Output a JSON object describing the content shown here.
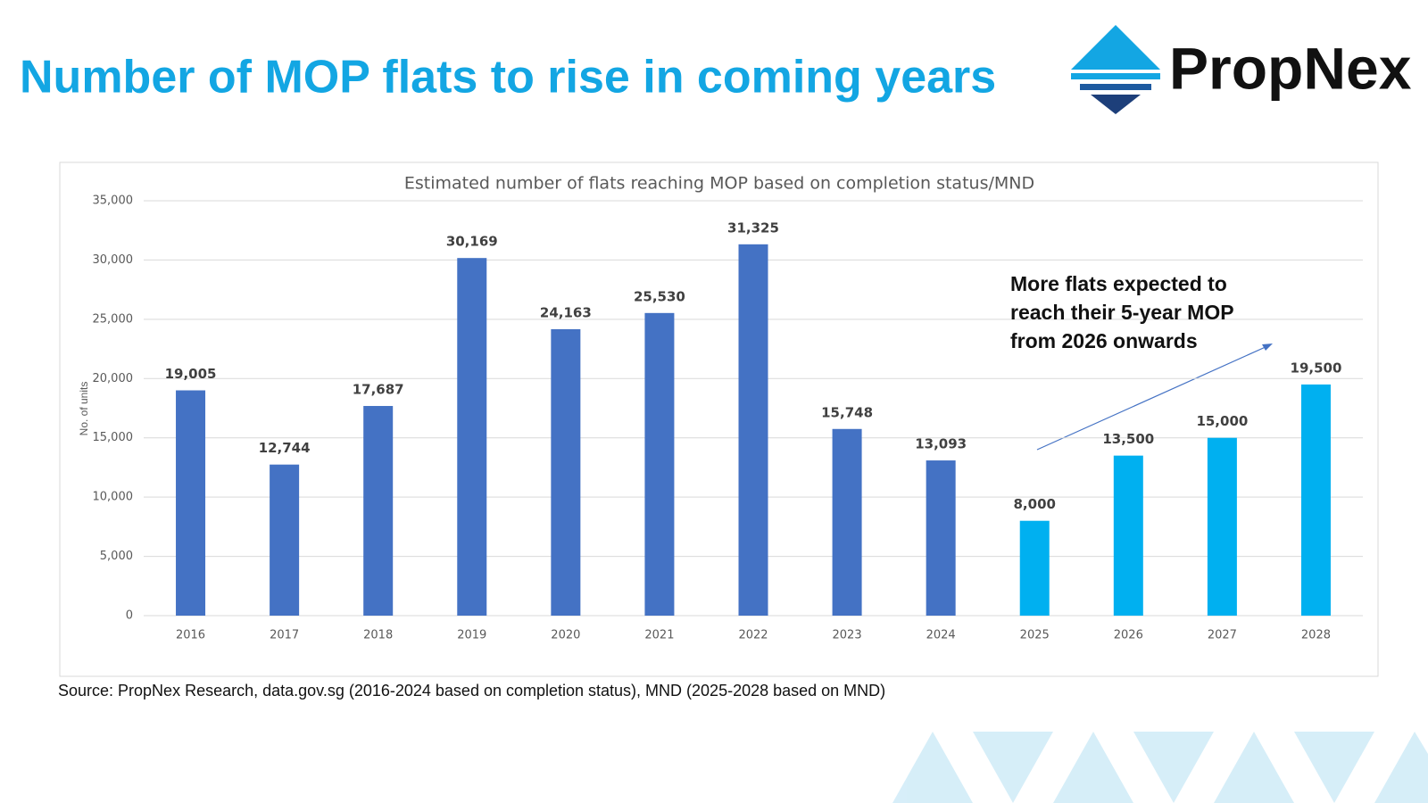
{
  "slide": {
    "title": "Number of MOP flats to rise in coming years",
    "logo": "PropNex",
    "source": "Source: PropNex Research, data.gov.sg (2016-2024 based on completion status), MND (2025-2028 based on MND)"
  },
  "chart_data": {
    "type": "bar",
    "title": "Estimated number of flats reaching MOP based on completion status/MND",
    "y_label": "No. of units",
    "categories": [
      "2016",
      "2017",
      "2018",
      "2019",
      "2020",
      "2021",
      "2022",
      "2023",
      "2024",
      "2025",
      "2026",
      "2027",
      "2028"
    ],
    "values": [
      19005,
      12744,
      17687,
      30169,
      24163,
      25530,
      31325,
      15748,
      13093,
      8000,
      13500,
      15000,
      19500
    ],
    "value_labels": [
      "19,005",
      "12,744",
      "17,687",
      "30,169",
      "24,163",
      "25,530",
      "31,325",
      "15,748",
      "13,093",
      "8,000",
      "13,500",
      "15,000",
      "19,500"
    ],
    "colors": [
      "#4472c4",
      "#4472c4",
      "#4472c4",
      "#4472c4",
      "#4472c4",
      "#4472c4",
      "#4472c4",
      "#4472c4",
      "#4472c4",
      "#00b0f0",
      "#00b0f0",
      "#00b0f0",
      "#00b0f0"
    ],
    "ylim": [
      0,
      35000
    ],
    "yticks": [
      0,
      {
        "value": 5000,
        "label": "5,000"
      },
      {
        "value": 10000,
        "label": "10,000"
      },
      {
        "value": 15000,
        "label": "15,000"
      },
      {
        "value": 20000,
        "label": "20,000"
      },
      {
        "value": 25000,
        "label": "25,000"
      },
      {
        "value": 30000,
        "label": "30,000"
      },
      {
        "value": 35000,
        "label": "35,000"
      }
    ],
    "grid": true,
    "annotation": [
      "More flats expected to",
      "reach their 5-year MOP",
      "from 2026 onwards"
    ]
  }
}
